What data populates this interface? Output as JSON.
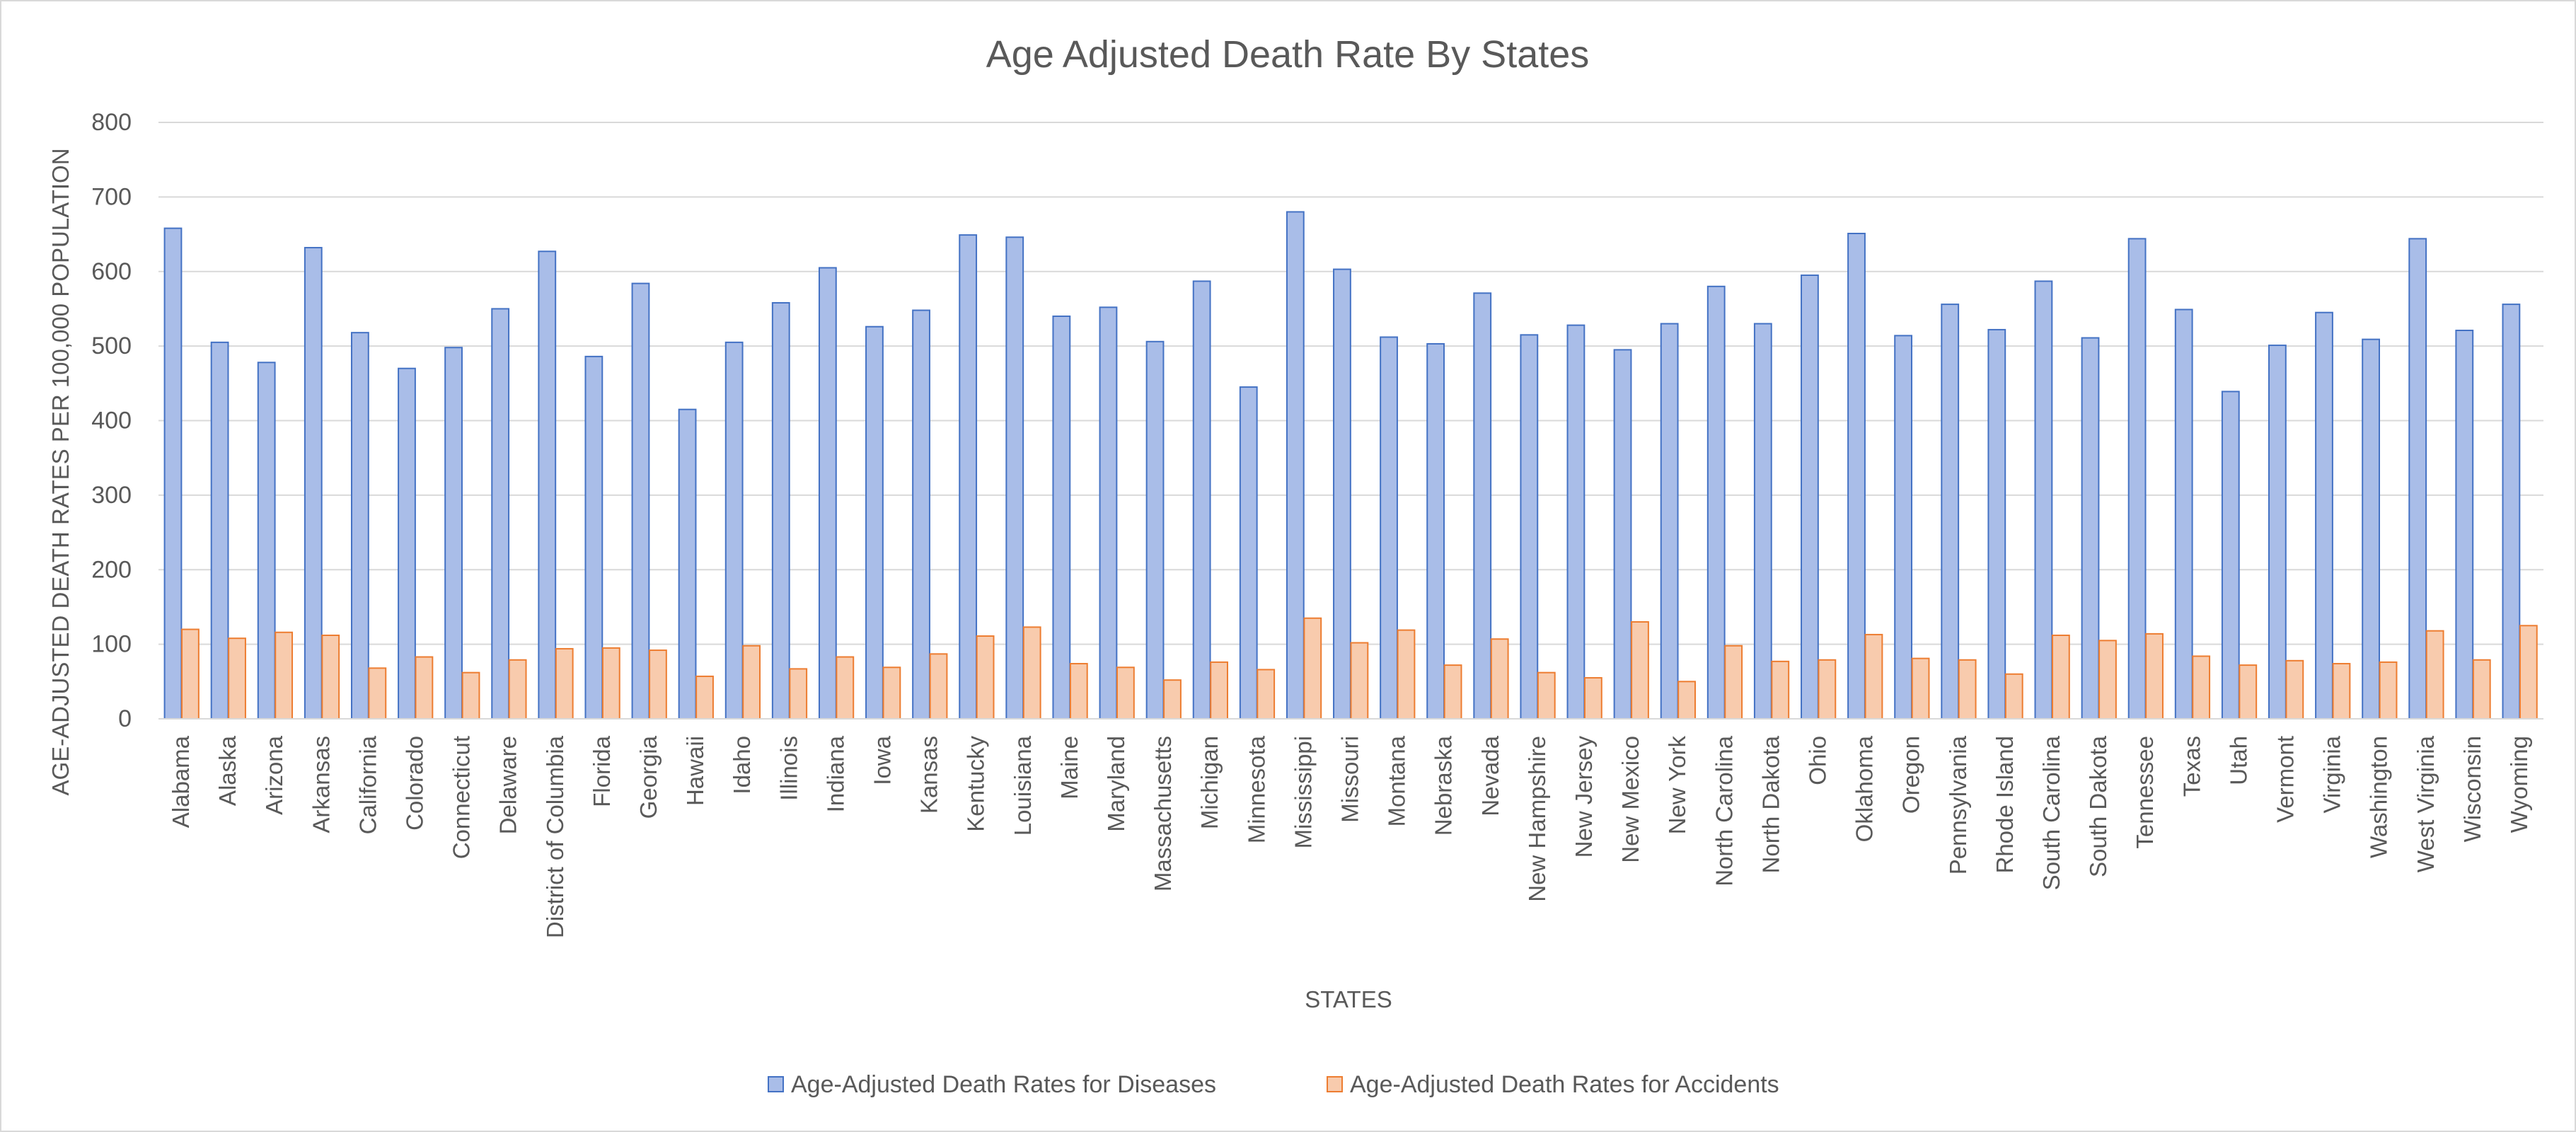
{
  "chart_data": {
    "type": "bar",
    "title": "Age Adjusted Death Rate By States",
    "xlabel": "STATES",
    "ylabel": "AGE-ADJUSTED DEATH  RATES PER 100,000 POPULATION",
    "ylim": [
      0,
      800
    ],
    "yticks": [
      0,
      100,
      200,
      300,
      400,
      500,
      600,
      700,
      800
    ],
    "grid": true,
    "legend_position": "bottom",
    "categories": [
      "Alabama",
      "Alaska",
      "Arizona",
      "Arkansas",
      "California",
      "Colorado",
      "Connecticut",
      "Delaware",
      "District of Columbia",
      "Florida",
      "Georgia",
      "Hawaii",
      "Idaho",
      "Illinois",
      "Indiana",
      "Iowa",
      "Kansas",
      "Kentucky",
      "Louisiana",
      "Maine",
      "Maryland",
      "Massachusetts",
      "Michigan",
      "Minnesota",
      "Mississippi",
      "Missouri",
      "Montana",
      "Nebraska",
      "Nevada",
      "New Hampshire",
      "New Jersey",
      "New Mexico",
      "New York",
      "North Carolina",
      "North Dakota",
      "Ohio",
      "Oklahoma",
      "Oregon",
      "Pennsylvania",
      "Rhode Island",
      "South Carolina",
      "South Dakota",
      "Tennessee",
      "Texas",
      "Utah",
      "Vermont",
      "Virginia",
      "Washington",
      "West Virginia",
      "Wisconsin",
      "Wyoming"
    ],
    "series": [
      {
        "name": "Age-Adjusted Death Rates for Diseases",
        "color": "#a9bde8",
        "stroke": "#4472c4",
        "values": [
          658,
          505,
          478,
          632,
          518,
          470,
          498,
          550,
          627,
          486,
          584,
          415,
          505,
          558,
          605,
          526,
          548,
          649,
          646,
          540,
          552,
          506,
          587,
          445,
          680,
          603,
          512,
          503,
          571,
          515,
          528,
          495,
          530,
          580,
          530,
          595,
          651,
          514,
          556,
          522,
          587,
          511,
          644,
          549,
          439,
          501,
          545,
          509,
          644,
          521,
          556
        ]
      },
      {
        "name": "Age-Adjusted Death Rates for Accidents",
        "color": "#f8cbad",
        "stroke": "#ed7d31",
        "values": [
          120,
          108,
          116,
          112,
          68,
          83,
          62,
          79,
          94,
          95,
          92,
          57,
          98,
          67,
          83,
          69,
          87,
          111,
          123,
          74,
          69,
          52,
          76,
          66,
          135,
          102,
          119,
          72,
          107,
          62,
          55,
          130,
          50,
          98,
          77,
          79,
          113,
          81,
          79,
          60,
          112,
          105,
          114,
          84,
          72,
          78,
          74,
          76,
          118,
          79,
          125
        ]
      }
    ]
  }
}
